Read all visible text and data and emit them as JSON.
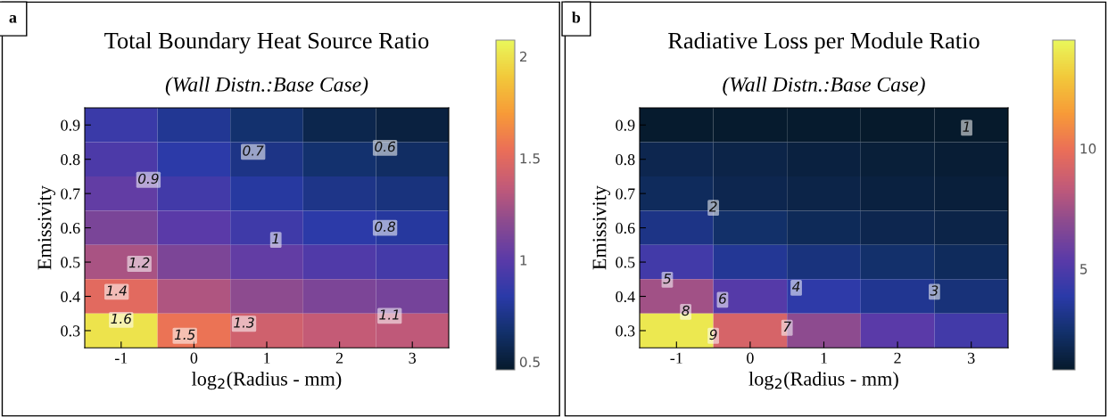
{
  "chart_data": [
    {
      "type": "heatmap",
      "title": "Total Boundary Heat Source Ratio",
      "subtitle": "(Wall Distn.:Base Case)",
      "xlabel": "log$_{2}$(Radius - mm)",
      "ylabel": "Emissivity",
      "categories": [
        "-1",
        "0",
        "1",
        "2",
        "3"
      ],
      "y_categories": [
        "0.9",
        "0.8",
        "0.7",
        "0.6",
        "0.5",
        "0.4",
        "0.3"
      ],
      "cells": [
        [
          0.88,
          0.76,
          0.65,
          0.56,
          0.52
        ],
        [
          0.95,
          0.83,
          0.72,
          0.65,
          0.62
        ],
        [
          1.03,
          0.91,
          0.8,
          0.73,
          0.7
        ],
        [
          1.12,
          1.0,
          0.9,
          0.83,
          0.79
        ],
        [
          1.28,
          1.13,
          1.03,
          0.96,
          0.92
        ],
        [
          1.5,
          1.3,
          1.19,
          1.13,
          1.1
        ],
        [
          2.0,
          1.56,
          1.42,
          1.37,
          1.35
        ]
      ],
      "clim": [
        0.46,
        2.08
      ],
      "cticks": [
        0.5,
        1,
        1.5,
        2
      ],
      "annotations": [
        "a",
        "0.6",
        "0.7",
        "0.9",
        "0.8",
        "1",
        "1.2",
        "1.1",
        "1.4",
        "1.3",
        "1.6",
        "1.5"
      ]
    },
    {
      "type": "heatmap",
      "title": "Radiative Loss per Module Ratio",
      "subtitle": "(Wall Distn.:Base Case)",
      "xlabel": "log$_{2}$(Radius - mm)",
      "ylabel": "Emissivity",
      "categories": [
        "-1",
        "0",
        "1",
        "2",
        "3"
      ],
      "y_categories": [
        "0.9",
        "0.8",
        "0.7",
        "0.6",
        "0.5",
        "0.4",
        "0.3"
      ],
      "cells": [
        [
          0.9,
          0.9,
          0.9,
          0.8,
          0.8
        ],
        [
          1.7,
          1.5,
          1.3,
          1.15,
          1.05
        ],
        [
          2.0,
          1.7,
          1.5,
          1.3,
          1.2
        ],
        [
          3.0,
          2.3,
          1.9,
          1.7,
          1.5
        ],
        [
          4.6,
          3.4,
          2.8,
          2.4,
          2.0
        ],
        [
          7.5,
          5.2,
          4.0,
          3.3,
          2.7
        ],
        [
          14.0,
          9.2,
          7.0,
          5.4,
          4.6
        ]
      ],
      "clim": [
        0.8,
        14.5
      ],
      "cticks": [
        5,
        10
      ],
      "annotations": [
        "b",
        "1",
        "2",
        "3",
        "4",
        "5",
        "6",
        "8",
        "7",
        "9"
      ]
    }
  ]
}
